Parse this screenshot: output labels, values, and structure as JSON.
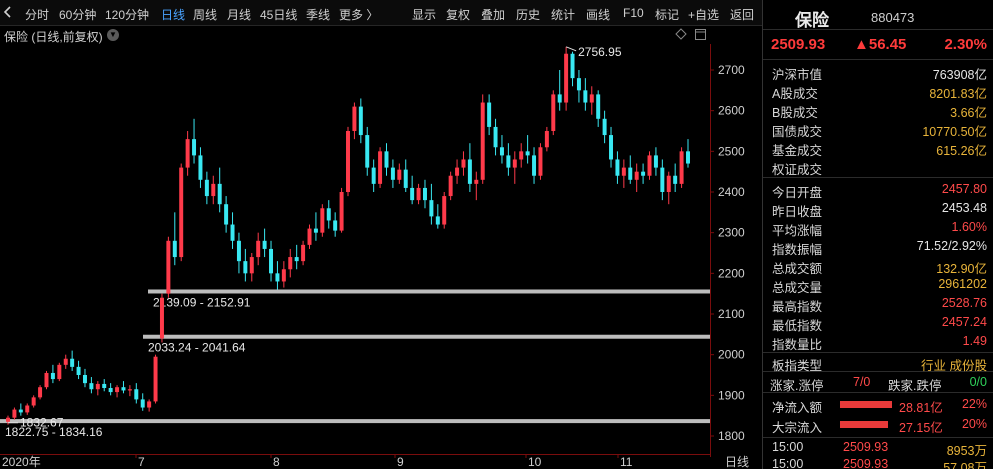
{
  "toolbar": {
    "left_items": [
      "分时",
      "60分钟",
      "120分钟",
      "日线",
      "周线",
      "月线",
      "45日线",
      "季线",
      "更多 〉"
    ],
    "active": "日线",
    "right_items": [
      "显示",
      "复权",
      "叠加",
      "历史",
      "统计",
      "画线",
      "F10",
      "标记",
      "+自选",
      "返回"
    ]
  },
  "chart": {
    "title": "保险 (日线,前复权)",
    "high_label": "2756.95",
    "low_label": "1832.67",
    "gap_labels": [
      "2139.09 - 2152.91",
      "2033.24 - 2041.64",
      "1822.75 - 1834.16"
    ],
    "x_labels": [
      "2020年",
      "7",
      "8",
      "9",
      "10",
      "11",
      "日线"
    ],
    "colors": {
      "up": "#ff3a4a",
      "down": "#39e8f2",
      "axis": "#7a0d0d",
      "gap": "#bdbdbd"
    }
  },
  "chart_data": {
    "type": "candlestick",
    "title": "保险 (日线,前复权)",
    "yaxis": {
      "ticks": [
        1800,
        1900,
        2000,
        2100,
        2200,
        2300,
        2400,
        2500,
        2600,
        2700
      ],
      "range": [
        1780,
        2800
      ]
    },
    "xaxis": {
      "labels": [
        "2020年",
        "7",
        "8",
        "9",
        "10",
        "11"
      ]
    },
    "marked_high": 2756.95,
    "marked_low": 1832.67,
    "gaps": [
      {
        "low": 2139.09,
        "high": 2152.91
      },
      {
        "low": 2033.24,
        "high": 2041.64
      },
      {
        "low": 1822.75,
        "high": 1834.16
      }
    ],
    "ohlc": [
      [
        1835,
        1850,
        1828,
        1845
      ],
      [
        1845,
        1870,
        1840,
        1865
      ],
      [
        1865,
        1880,
        1850,
        1858
      ],
      [
        1858,
        1880,
        1852,
        1875
      ],
      [
        1875,
        1900,
        1870,
        1895
      ],
      [
        1895,
        1925,
        1890,
        1920
      ],
      [
        1920,
        1960,
        1915,
        1955
      ],
      [
        1955,
        1975,
        1930,
        1940
      ],
      [
        1940,
        1980,
        1935,
        1975
      ],
      [
        1975,
        2000,
        1965,
        1990
      ],
      [
        1990,
        2010,
        1960,
        1970
      ],
      [
        1970,
        1985,
        1940,
        1950
      ],
      [
        1950,
        1965,
        1920,
        1930
      ],
      [
        1930,
        1945,
        1905,
        1915
      ],
      [
        1915,
        1935,
        1900,
        1928
      ],
      [
        1928,
        1940,
        1910,
        1918
      ],
      [
        1918,
        1930,
        1900,
        1908
      ],
      [
        1908,
        1925,
        1895,
        1920
      ],
      [
        1920,
        1935,
        1905,
        1912
      ],
      [
        1912,
        1925,
        1898,
        1915
      ],
      [
        1915,
        1930,
        1880,
        1890
      ],
      [
        1890,
        1905,
        1862,
        1870
      ],
      [
        1870,
        1890,
        1860,
        1885
      ],
      [
        1885,
        2000,
        1880,
        1995
      ],
      [
        2040,
        2150,
        2030,
        2140
      ],
      [
        2150,
        2290,
        2140,
        2280
      ],
      [
        2280,
        2350,
        2220,
        2240
      ],
      [
        2240,
        2470,
        2230,
        2460
      ],
      [
        2460,
        2550,
        2440,
        2530
      ],
      [
        2530,
        2580,
        2470,
        2490
      ],
      [
        2490,
        2510,
        2410,
        2430
      ],
      [
        2430,
        2450,
        2370,
        2390
      ],
      [
        2390,
        2440,
        2370,
        2420
      ],
      [
        2420,
        2460,
        2350,
        2370
      ],
      [
        2370,
        2390,
        2300,
        2320
      ],
      [
        2320,
        2350,
        2260,
        2280
      ],
      [
        2280,
        2300,
        2200,
        2230
      ],
      [
        2230,
        2260,
        2180,
        2200
      ],
      [
        2200,
        2250,
        2180,
        2240
      ],
      [
        2240,
        2300,
        2220,
        2280
      ],
      [
        2280,
        2310,
        2240,
        2260
      ],
      [
        2260,
        2280,
        2180,
        2200
      ],
      [
        2200,
        2230,
        2160,
        2180
      ],
      [
        2180,
        2230,
        2165,
        2210
      ],
      [
        2210,
        2260,
        2190,
        2240
      ],
      [
        2240,
        2270,
        2210,
        2230
      ],
      [
        2230,
        2280,
        2220,
        2270
      ],
      [
        2270,
        2320,
        2260,
        2310
      ],
      [
        2310,
        2350,
        2280,
        2300
      ],
      [
        2300,
        2370,
        2290,
        2360
      ],
      [
        2360,
        2380,
        2310,
        2330
      ],
      [
        2330,
        2350,
        2290,
        2305
      ],
      [
        2305,
        2410,
        2300,
        2400
      ],
      [
        2400,
        2560,
        2390,
        2550
      ],
      [
        2550,
        2620,
        2530,
        2610
      ],
      [
        2610,
        2630,
        2520,
        2540
      ],
      [
        2540,
        2560,
        2440,
        2460
      ],
      [
        2460,
        2480,
        2400,
        2420
      ],
      [
        2420,
        2510,
        2410,
        2500
      ],
      [
        2500,
        2520,
        2440,
        2460
      ],
      [
        2460,
        2480,
        2410,
        2430
      ],
      [
        2430,
        2470,
        2420,
        2455
      ],
      [
        2455,
        2480,
        2400,
        2410
      ],
      [
        2410,
        2440,
        2370,
        2380
      ],
      [
        2380,
        2420,
        2370,
        2410
      ],
      [
        2410,
        2430,
        2360,
        2380
      ],
      [
        2380,
        2420,
        2320,
        2340
      ],
      [
        2340,
        2370,
        2310,
        2320
      ],
      [
        2320,
        2400,
        2310,
        2390
      ],
      [
        2390,
        2450,
        2380,
        2440
      ],
      [
        2440,
        2480,
        2420,
        2460
      ],
      [
        2460,
        2500,
        2440,
        2480
      ],
      [
        2480,
        2520,
        2400,
        2420
      ],
      [
        2420,
        2450,
        2380,
        2430
      ],
      [
        2430,
        2640,
        2420,
        2620
      ],
      [
        2620,
        2640,
        2540,
        2560
      ],
      [
        2560,
        2580,
        2490,
        2510
      ],
      [
        2510,
        2540,
        2470,
        2490
      ],
      [
        2490,
        2520,
        2440,
        2460
      ],
      [
        2460,
        2500,
        2420,
        2480
      ],
      [
        2480,
        2520,
        2460,
        2500
      ],
      [
        2500,
        2540,
        2470,
        2490
      ],
      [
        2490,
        2510,
        2420,
        2440
      ],
      [
        2440,
        2520,
        2430,
        2510
      ],
      [
        2510,
        2560,
        2500,
        2550
      ],
      [
        2550,
        2650,
        2540,
        2640
      ],
      [
        2640,
        2700,
        2600,
        2620
      ],
      [
        2620,
        2757,
        2600,
        2740
      ],
      [
        2740,
        2745,
        2660,
        2680
      ],
      [
        2680,
        2700,
        2620,
        2650
      ],
      [
        2650,
        2680,
        2600,
        2620
      ],
      [
        2620,
        2660,
        2590,
        2640
      ],
      [
        2640,
        2650,
        2560,
        2580
      ],
      [
        2580,
        2600,
        2520,
        2540
      ],
      [
        2540,
        2560,
        2460,
        2480
      ],
      [
        2480,
        2500,
        2420,
        2440
      ],
      [
        2440,
        2480,
        2410,
        2460
      ],
      [
        2460,
        2490,
        2420,
        2430
      ],
      [
        2430,
        2470,
        2400,
        2450
      ],
      [
        2450,
        2470,
        2420,
        2440
      ],
      [
        2440,
        2500,
        2430,
        2490
      ],
      [
        2490,
        2510,
        2440,
        2460
      ],
      [
        2460,
        2480,
        2380,
        2400
      ],
      [
        2400,
        2450,
        2370,
        2440
      ],
      [
        2440,
        2470,
        2400,
        2420
      ],
      [
        2420,
        2510,
        2410,
        2500
      ],
      [
        2500,
        2530,
        2460,
        2470
      ]
    ]
  },
  "panel": {
    "name": "保险",
    "code": "880473",
    "price": "2509.93",
    "change": "▲56.45",
    "pct": "2.30%",
    "market": [
      {
        "label": "沪深市值",
        "value": "763908亿",
        "color": "white"
      },
      {
        "label": "A股成交",
        "value": "8201.83亿",
        "color": "yellow"
      },
      {
        "label": "B股成交",
        "value": "3.66亿",
        "color": "yellow"
      },
      {
        "label": "国债成交",
        "value": "10770.50亿",
        "color": "yellow"
      },
      {
        "label": "基金成交",
        "value": "615.26亿",
        "color": "yellow"
      },
      {
        "label": "权证成交",
        "value": "",
        "color": "yellow"
      }
    ],
    "stats": [
      {
        "label": "今日开盘",
        "value": "2457.80",
        "color": "red"
      },
      {
        "label": "昨日收盘",
        "value": "2453.48",
        "color": "white"
      },
      {
        "label": "平均涨幅",
        "value": "1.60%",
        "color": "red"
      },
      {
        "label": "指数振幅",
        "value": "71.52/2.92%",
        "color": "white"
      },
      {
        "label": "总成交额",
        "value": "132.90亿",
        "color": "yellow"
      },
      {
        "label": "总成交量",
        "value": "2961202",
        "color": "yellow"
      },
      {
        "label": "最高指数",
        "value": "2528.76",
        "color": "red"
      },
      {
        "label": "最低指数",
        "value": "2457.24",
        "color": "red"
      },
      {
        "label": "指数量比",
        "value": "1.49",
        "color": "red"
      }
    ],
    "sector": {
      "label": "板指类型",
      "value": "行业 成份股"
    },
    "updown": {
      "up_label": "涨家.涨停",
      "up_value": "7/0",
      "down_label": "跌家.跌停",
      "down_value": "0/0"
    },
    "flows": [
      {
        "label": "净流入额",
        "value": "28.81亿",
        "pct": "22%"
      },
      {
        "label": "大宗流入",
        "value": "27.15亿",
        "pct": "20%"
      }
    ],
    "ticks": [
      {
        "time": "15:00",
        "price": "2509.93",
        "vol": "8953万"
      },
      {
        "time": "15:00",
        "price": "2509.93",
        "vol": "57.08万"
      }
    ]
  }
}
